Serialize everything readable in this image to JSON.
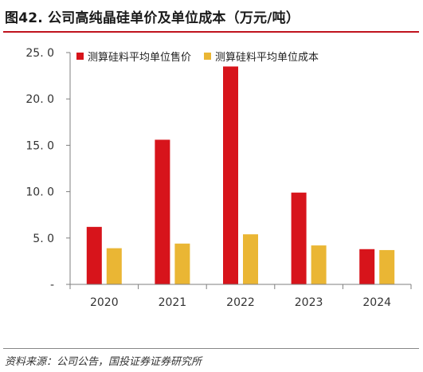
{
  "figure": {
    "title": "图42. 公司高纯晶硅单价及单位成本（万元/吨）",
    "source": "资料来源：公司公告，国投证券证券研究所"
  },
  "colors": {
    "price": "#d7141b",
    "cost": "#eab634",
    "axis": "#7f7f7f",
    "title_rule": "#c0131e"
  },
  "chart_data": {
    "type": "bar",
    "categories": [
      "2020",
      "2021",
      "2022",
      "2023",
      "2024"
    ],
    "series": [
      {
        "name": "测算硅料平均单位售价",
        "color": "#d7141b",
        "values": [
          6.2,
          15.6,
          23.5,
          9.9,
          3.8
        ]
      },
      {
        "name": "测算硅料平均单位成本",
        "color": "#eab634",
        "values": [
          3.9,
          4.4,
          5.4,
          4.2,
          3.7
        ]
      }
    ],
    "ylim": [
      0,
      25
    ],
    "yticks": [
      "-",
      "5. 0",
      "10. 0",
      "15. 0",
      "20. 0",
      "25. 0"
    ],
    "ytick_values": [
      0,
      5,
      10,
      15,
      20,
      25
    ],
    "grid": false,
    "legend_position": "top-left"
  }
}
